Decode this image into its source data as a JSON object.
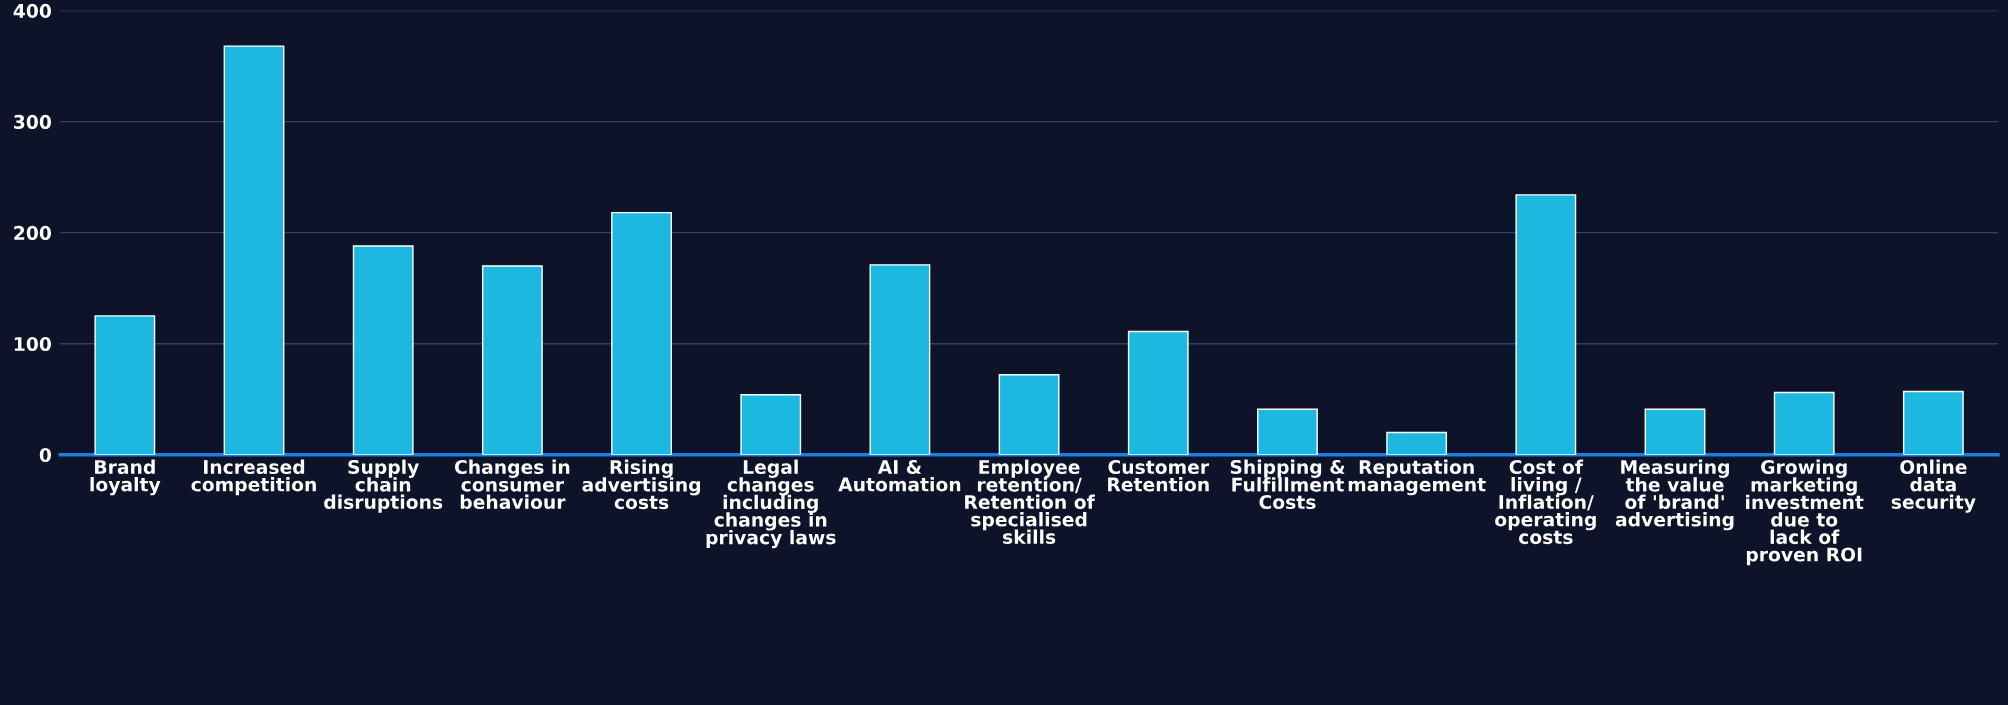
{
  "chart_data": {
    "type": "bar",
    "categories": [
      "Brand\nloyalty",
      "Increased\ncompetition",
      "Supply\nchain\ndisruptions",
      "Changes in\nconsumer\nbehaviour",
      "Rising\nadvertising\ncosts",
      "Legal\nchanges\nincluding\nchanges in\nprivacy laws",
      "AI &\nAutomation",
      "Employee\nretention/\nRetention of\nspecialised\nskills",
      "Customer\nRetention",
      "Shipping &\nFulfillment\nCosts",
      "Reputation\nmanagement",
      "Cost of\nliving /\nInflation/\noperating\ncosts",
      "Measuring\nthe value\nof 'brand'\nadvertising",
      "Growing\nmarketing\ninvestment\ndue to\nlack of\nproven ROI",
      "Online\ndata\nsecurity"
    ],
    "values": [
      125,
      368,
      188,
      170,
      218,
      54,
      171,
      72,
      111,
      41,
      20,
      234,
      41,
      56,
      57
    ],
    "color": "#1cb8e0",
    "ylim": [
      0,
      400
    ],
    "yticks": [
      0,
      100,
      200,
      300,
      400
    ],
    "grid": "y",
    "legend": false
  }
}
